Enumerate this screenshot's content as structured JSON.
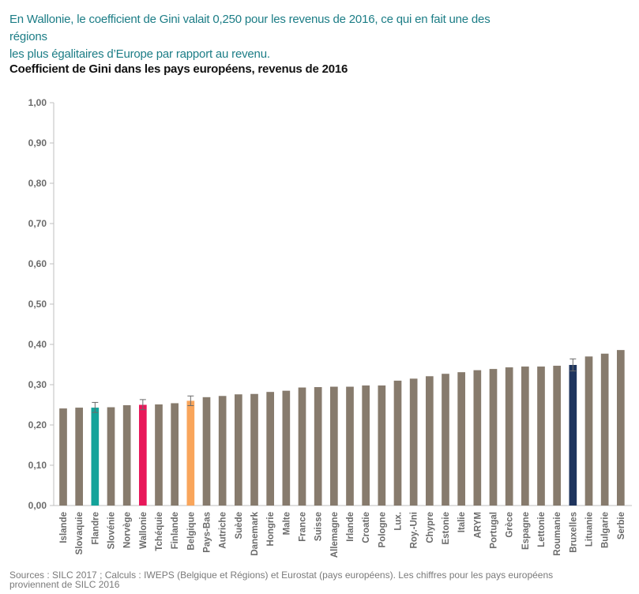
{
  "intro": {
    "line1": "En Wallonie, le coefficient de Gini valait 0,250 pour les revenus de 2016, ce qui en fait une des régions",
    "line2": "les plus égalitaires d’Europe par rapport au revenu."
  },
  "source": {
    "line1": "Sources : SILC 2017 ; Calculs : IWEPS (Belgique et Régions) et Eurostat (pays européens). Les chiffres pour les pays européens",
    "line2": "proviennent de SILC 2016"
  },
  "colors": {
    "default_bar": "#877b6d",
    "flandre": "#14a39a",
    "wallonie": "#e8185a",
    "belgique": "#f9a55b",
    "bruxelles": "#1f355e",
    "axis": "#bfbfbf"
  },
  "chart_data": {
    "type": "bar",
    "title": "Coefficient de Gini dans les pays européens, revenus de 2016",
    "xlabel": "",
    "ylabel": "",
    "ylim": [
      0,
      1
    ],
    "yticks": [
      "0,00",
      "0,10",
      "0,20",
      "0,30",
      "0,40",
      "0,50",
      "0,60",
      "0,70",
      "0,80",
      "0,90",
      "1,00"
    ],
    "grid": false,
    "categories": [
      "Islande",
      "Slovaquie",
      "Flandre",
      "Slovénie",
      "Norvège",
      "Wallonie",
      "Tchéquie",
      "Finlande",
      "Belgique",
      "Pays-Bas",
      "Autriche",
      "Suède",
      "Danemark",
      "Hongrie",
      "Malte",
      "France",
      "Suisse",
      "Allemagne",
      "Irlande",
      "Croatie",
      "Pologne",
      "Lux.",
      "Roy.-Uni",
      "Chypre",
      "Estonie",
      "Italie",
      "ARYM",
      "Portugal",
      "Grèce",
      "Espagne",
      "Lettonie",
      "Roumanie",
      "Bruxelles",
      "Lituanie",
      "Bulgarie",
      "Serbie"
    ],
    "values": [
      0.241,
      0.243,
      0.243,
      0.244,
      0.249,
      0.25,
      0.251,
      0.254,
      0.26,
      0.269,
      0.272,
      0.276,
      0.277,
      0.282,
      0.285,
      0.293,
      0.294,
      0.295,
      0.295,
      0.298,
      0.298,
      0.31,
      0.315,
      0.321,
      0.327,
      0.331,
      0.336,
      0.339,
      0.343,
      0.345,
      0.345,
      0.347,
      0.349,
      0.37,
      0.377,
      0.386
    ],
    "error_bars": {
      "Flandre": [
        0.231,
        0.256
      ],
      "Wallonie": [
        0.238,
        0.263
      ],
      "Belgique": [
        0.248,
        0.272
      ],
      "Bruxelles": [
        0.334,
        0.364
      ]
    },
    "highlight": {
      "Flandre": "flandre",
      "Wallonie": "wallonie",
      "Belgique": "belgique",
      "Bruxelles": "bruxelles"
    }
  }
}
